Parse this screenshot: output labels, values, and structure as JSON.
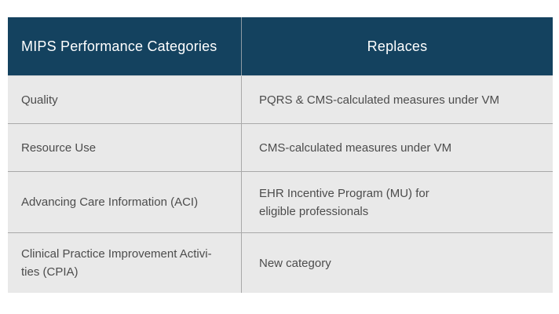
{
  "chart_data": {
    "type": "table",
    "columns": [
      "MIPS Performance Categories",
      "Replaces"
    ],
    "rows": [
      [
        "Quality",
        "PQRS & CMS-calculated measures under VM"
      ],
      [
        "Resource Use",
        "CMS-calculated measures under VM"
      ],
      [
        "Advancing Care Information (ACI)",
        "EHR Incentive Program (MU) for eligible professionals"
      ],
      [
        "Clinical Practice Improvement Activities (CPIA)",
        "New category"
      ]
    ],
    "title": "",
    "legend": "none",
    "layout_hints": {
      "header_background": "#14425f",
      "header_text_color": "#ffffff",
      "row_background": "#e9e9e9",
      "row_text_color": "#4c4c4c",
      "divider_color": "#a9a9a9"
    }
  },
  "table": {
    "header": {
      "categories_label": "MIPS Performance Categories",
      "replaces_label": "Replaces"
    },
    "rows": [
      {
        "category": "Quality",
        "replaces": "PQRS & CMS-calculated measures under VM"
      },
      {
        "category": "Resource Use",
        "replaces": "CMS-calculated measures under VM"
      },
      {
        "category": "Advancing Care Information (ACI)",
        "replaces": "EHR Incentive Program (MU) for\neligible professionals"
      },
      {
        "category": "Clinical Practice Improvement Activi-\nties (CPIA)",
        "replaces": "New category"
      }
    ]
  }
}
